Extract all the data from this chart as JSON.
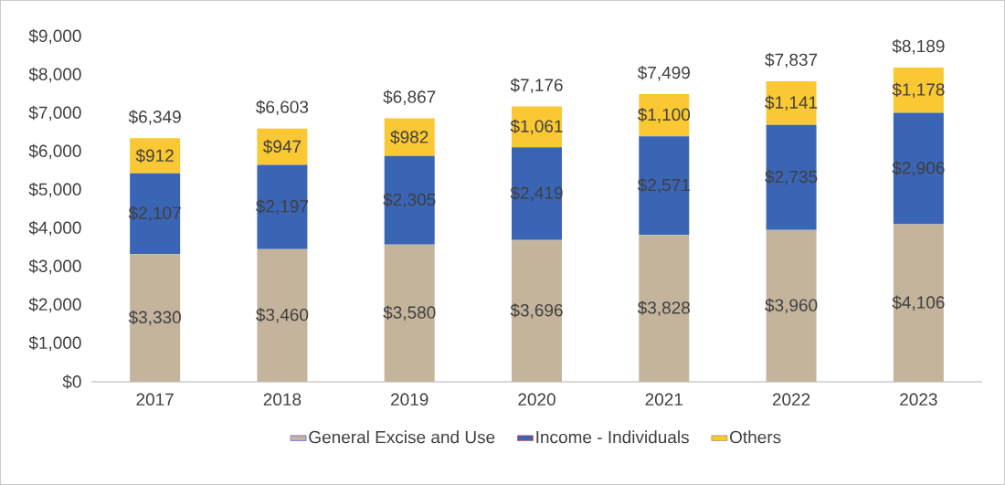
{
  "chart_data": {
    "type": "bar",
    "stacked": true,
    "categories": [
      "2017",
      "2018",
      "2019",
      "2020",
      "2021",
      "2022",
      "2023"
    ],
    "ylim": [
      0,
      9000
    ],
    "yticks": [
      {
        "value": 0,
        "label": "$0"
      },
      {
        "value": 1000,
        "label": "$1,000"
      },
      {
        "value": 2000,
        "label": "$2,000"
      },
      {
        "value": 3000,
        "label": "$3,000"
      },
      {
        "value": 4000,
        "label": "$4,000"
      },
      {
        "value": 5000,
        "label": "$5,000"
      },
      {
        "value": 6000,
        "label": "$6,000"
      },
      {
        "value": 7000,
        "label": "$7,000"
      },
      {
        "value": 8000,
        "label": "$8,000"
      },
      {
        "value": 9000,
        "label": "$9,000"
      }
    ],
    "series": [
      {
        "name": "General Excise and Use",
        "color": "#c4b49c",
        "values": [
          3330,
          3460,
          3580,
          3696,
          3828,
          3960,
          4106
        ],
        "value_labels": [
          "$3,330",
          "$3,460",
          "$3,580",
          "$3,696",
          "$3,828",
          "$3,960",
          "$4,106"
        ]
      },
      {
        "name": "Income - Individuals",
        "color": "#3a64b4",
        "values": [
          2107,
          2197,
          2305,
          2419,
          2571,
          2735,
          2906
        ],
        "value_labels": [
          "$2,107",
          "$2,197",
          "$2,305",
          "$2,419",
          "$2,571",
          "$2,735",
          "$2,906"
        ]
      },
      {
        "name": "Others",
        "color": "#fac832",
        "values": [
          912,
          947,
          982,
          1061,
          1100,
          1141,
          1178
        ],
        "value_labels": [
          "$912",
          "$947",
          "$982",
          "$1,061",
          "$1,100",
          "$1,141",
          "$1,178"
        ]
      }
    ],
    "totals": [
      "$6,349",
      "$6,603",
      "$6,867",
      "$7,176",
      "$7,499",
      "$7,837",
      "$8,189"
    ],
    "legend": "bottom"
  }
}
